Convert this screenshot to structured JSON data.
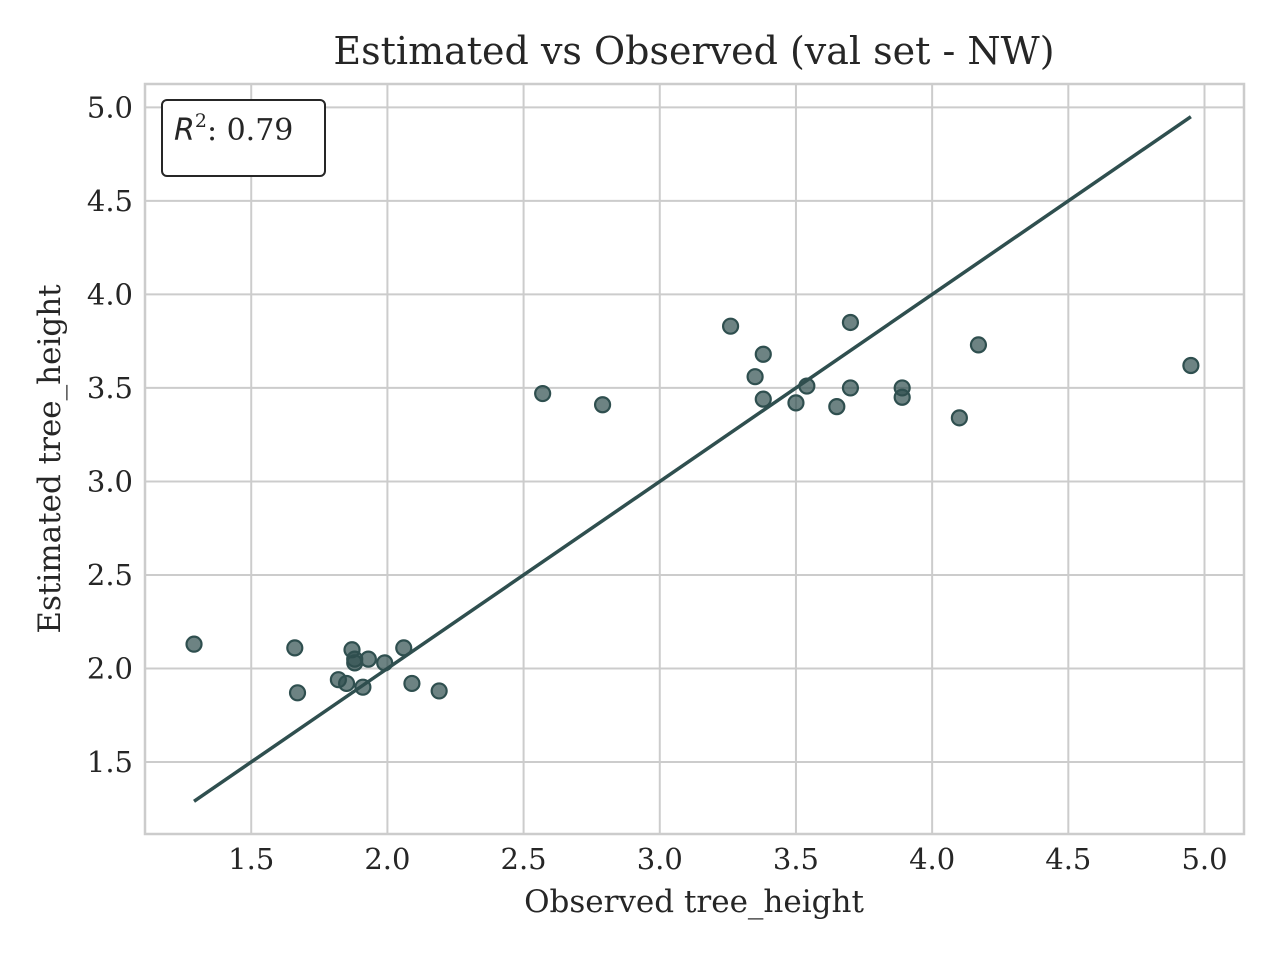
{
  "chart_data": {
    "type": "scatter",
    "title": "Estimated vs Observed (val set - NW)",
    "xlabel": "Observed tree_height",
    "ylabel": "Estimated tree_height",
    "xlim": [
      1.11,
      5.145
    ],
    "ylim": [
      1.115,
      5.125
    ],
    "xticks": [
      1.5,
      2.0,
      2.5,
      3.0,
      3.5,
      4.0,
      4.5,
      5.0
    ],
    "xtick_labels": [
      "1.5",
      "2.0",
      "2.5",
      "3.0",
      "3.5",
      "4.0",
      "4.5",
      "5.0"
    ],
    "yticks": [
      1.5,
      2.0,
      2.5,
      3.0,
      3.5,
      4.0,
      4.5,
      5.0
    ],
    "ytick_labels": [
      "1.5",
      "2.0",
      "2.5",
      "3.0",
      "3.5",
      "4.0",
      "4.5",
      "5.0"
    ],
    "grid": true,
    "annotation": {
      "symbol": "R",
      "superscript": "2",
      "text": ": 0.79",
      "placement": "top-left"
    },
    "identity_line": {
      "x": [
        1.29,
        4.95
      ],
      "y": [
        1.29,
        4.95
      ]
    },
    "points": [
      {
        "x": 1.29,
        "y": 2.13
      },
      {
        "x": 1.66,
        "y": 2.11
      },
      {
        "x": 1.67,
        "y": 1.87
      },
      {
        "x": 1.82,
        "y": 1.94
      },
      {
        "x": 1.85,
        "y": 1.92
      },
      {
        "x": 1.87,
        "y": 2.1
      },
      {
        "x": 1.88,
        "y": 2.05
      },
      {
        "x": 1.88,
        "y": 2.03
      },
      {
        "x": 1.91,
        "y": 1.9
      },
      {
        "x": 1.93,
        "y": 2.05
      },
      {
        "x": 1.99,
        "y": 2.03
      },
      {
        "x": 2.06,
        "y": 2.11
      },
      {
        "x": 2.09,
        "y": 1.92
      },
      {
        "x": 2.19,
        "y": 1.88
      },
      {
        "x": 2.57,
        "y": 3.47
      },
      {
        "x": 2.79,
        "y": 3.41
      },
      {
        "x": 3.26,
        "y": 3.83
      },
      {
        "x": 3.35,
        "y": 3.56
      },
      {
        "x": 3.38,
        "y": 3.68
      },
      {
        "x": 3.38,
        "y": 3.44
      },
      {
        "x": 3.5,
        "y": 3.42
      },
      {
        "x": 3.54,
        "y": 3.51
      },
      {
        "x": 3.65,
        "y": 3.4
      },
      {
        "x": 3.7,
        "y": 3.85
      },
      {
        "x": 3.7,
        "y": 3.5
      },
      {
        "x": 3.89,
        "y": 3.5
      },
      {
        "x": 3.89,
        "y": 3.45
      },
      {
        "x": 4.1,
        "y": 3.34
      },
      {
        "x": 4.17,
        "y": 3.73
      },
      {
        "x": 4.95,
        "y": 3.62
      }
    ],
    "colors": {
      "point": "#2f4f4f",
      "line": "#2f4f4f",
      "grid": "#cccccc",
      "spine": "#cccccc",
      "text": "#262626"
    }
  }
}
